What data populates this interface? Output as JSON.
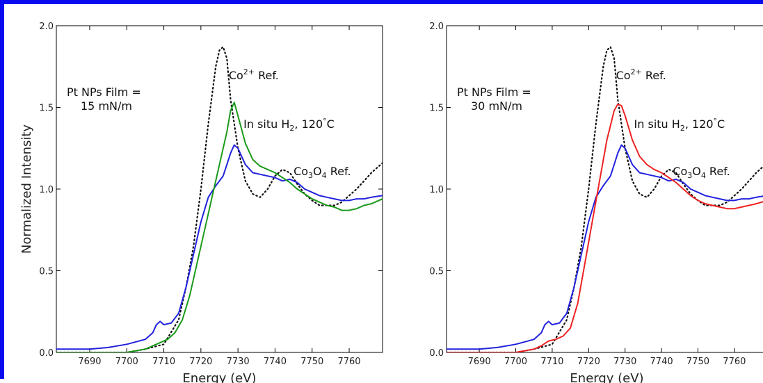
{
  "colors": {
    "frame": "#0a0af0",
    "dotted": "#111111",
    "blue": "#2222dd",
    "green": "#1a9a1a",
    "red": "#ee2222"
  },
  "chart_data": [
    {
      "type": "line",
      "xlabel": "Energy (eV)",
      "ylabel": "Normalized Intensity",
      "xlim": [
        7681,
        7769
      ],
      "ylim": [
        0.0,
        2.0
      ],
      "xticks": [
        "7690",
        "7700",
        "7710",
        "7720",
        "7730",
        "7740",
        "7750",
        "7760"
      ],
      "yticks": [
        "0.0",
        "0.5",
        "1.0",
        "1.5",
        "2.0"
      ],
      "film_label": [
        "Pt NPs Film =",
        "15 mN/m"
      ],
      "annotations": {
        "co2": "Co",
        "co2_sup": "2+",
        "co2_ref": " Ref.",
        "insitu": "In situ H",
        "insitu_sub": "2",
        "insitu_rest": ", 120",
        "insitu_deg": "°",
        "insitu_unit": "C",
        "co3o4_a": "Co",
        "co3o4_s1": "3",
        "co3o4_b": "O",
        "co3o4_s2": "4",
        "co3o4_c": " Ref."
      },
      "series": [
        {
          "key": "co2_ref",
          "style": "dotted",
          "color": "#111111",
          "x": [
            7681,
            7700,
            7705,
            7710,
            7714,
            7716,
            7718,
            7720,
            7722,
            7724,
            7725,
            7726,
            7727,
            7728,
            7730,
            7732,
            7734,
            7736,
            7738,
            7740,
            7742,
            7744,
            7746,
            7748,
            7750,
            7752,
            7754,
            7756,
            7758,
            7760,
            7762,
            7764,
            7766,
            7769
          ],
          "y": [
            0.0,
            0.0,
            0.02,
            0.05,
            0.2,
            0.4,
            0.65,
            1.0,
            1.4,
            1.75,
            1.85,
            1.87,
            1.8,
            1.55,
            1.25,
            1.05,
            0.97,
            0.95,
            1.0,
            1.08,
            1.12,
            1.1,
            1.03,
            0.97,
            0.93,
            0.9,
            0.9,
            0.9,
            0.92,
            0.96,
            1.0,
            1.05,
            1.1,
            1.16
          ]
        },
        {
          "key": "co3o4_ref",
          "style": "solid",
          "color": "#2222dd",
          "x": [
            7681,
            7690,
            7695,
            7700,
            7705,
            7707,
            7708,
            7709,
            7710,
            7712,
            7714,
            7716,
            7718,
            7720,
            7722,
            7724,
            7726,
            7727,
            7728,
            7729,
            7730,
            7732,
            7734,
            7736,
            7738,
            7740,
            7742,
            7744,
            7746,
            7748,
            7750,
            7752,
            7754,
            7756,
            7758,
            7760,
            7762,
            7764,
            7766,
            7769
          ],
          "y": [
            0.02,
            0.02,
            0.03,
            0.05,
            0.08,
            0.12,
            0.17,
            0.19,
            0.17,
            0.18,
            0.24,
            0.4,
            0.6,
            0.8,
            0.95,
            1.02,
            1.08,
            1.15,
            1.22,
            1.27,
            1.25,
            1.15,
            1.1,
            1.09,
            1.08,
            1.07,
            1.05,
            1.06,
            1.04,
            1.0,
            0.98,
            0.96,
            0.95,
            0.94,
            0.93,
            0.93,
            0.94,
            0.94,
            0.95,
            0.96
          ]
        },
        {
          "key": "in_situ",
          "style": "solid",
          "color": "#1a9a1a",
          "x": [
            7681,
            7700,
            7705,
            7707,
            7709,
            7711,
            7713,
            7715,
            7717,
            7719,
            7721,
            7723,
            7725,
            7727,
            7728,
            7729,
            7730,
            7732,
            7734,
            7736,
            7738,
            7740,
            7742,
            7744,
            7746,
            7748,
            7750,
            7752,
            7754,
            7756,
            7758,
            7760,
            7762,
            7764,
            7766,
            7769
          ],
          "y": [
            0.0,
            0.0,
            0.02,
            0.04,
            0.06,
            0.08,
            0.12,
            0.2,
            0.35,
            0.55,
            0.75,
            0.95,
            1.15,
            1.35,
            1.48,
            1.53,
            1.45,
            1.28,
            1.18,
            1.14,
            1.12,
            1.1,
            1.07,
            1.04,
            1.0,
            0.97,
            0.94,
            0.92,
            0.9,
            0.89,
            0.87,
            0.87,
            0.88,
            0.9,
            0.91,
            0.94
          ]
        }
      ]
    },
    {
      "type": "line",
      "xlabel": "Energy (eV)",
      "ylabel": "",
      "xlim": [
        7681,
        7769
      ],
      "ylim": [
        0.0,
        2.0
      ],
      "xticks": [
        "7690",
        "7700",
        "7710",
        "7720",
        "7730",
        "7740",
        "7750",
        "7760"
      ],
      "yticks": [
        "0.0",
        "0.5",
        "1.0",
        "1.5",
        "2.0"
      ],
      "film_label": [
        "Pt NPs Film =",
        "30 mN/m"
      ],
      "annotations": {
        "co2": "Co",
        "co2_sup": "2+",
        "co2_ref": " Ref.",
        "insitu": "In situ H",
        "insitu_sub": "2",
        "insitu_rest": ", 120",
        "insitu_deg": "°",
        "insitu_unit": "C",
        "co3o4_a": "Co",
        "co3o4_s1": "3",
        "co3o4_b": "O",
        "co3o4_s2": "4",
        "co3o4_c": " Ref."
      },
      "series": [
        {
          "key": "co2_ref",
          "style": "dotted",
          "color": "#111111",
          "x": [
            7681,
            7700,
            7705,
            7710,
            7714,
            7716,
            7718,
            7720,
            7722,
            7724,
            7725,
            7726,
            7727,
            7728,
            7730,
            7732,
            7734,
            7736,
            7738,
            7740,
            7742,
            7744,
            7746,
            7748,
            7750,
            7752,
            7754,
            7756,
            7758,
            7760,
            7762,
            7764,
            7766,
            7769
          ],
          "y": [
            0.0,
            0.0,
            0.02,
            0.05,
            0.2,
            0.4,
            0.65,
            1.0,
            1.4,
            1.75,
            1.85,
            1.87,
            1.8,
            1.55,
            1.25,
            1.05,
            0.97,
            0.95,
            1.0,
            1.08,
            1.12,
            1.1,
            1.03,
            0.97,
            0.93,
            0.9,
            0.9,
            0.9,
            0.92,
            0.96,
            1.0,
            1.05,
            1.1,
            1.16
          ]
        },
        {
          "key": "co3o4_ref",
          "style": "solid",
          "color": "#2222dd",
          "x": [
            7681,
            7690,
            7695,
            7700,
            7705,
            7707,
            7708,
            7709,
            7710,
            7712,
            7714,
            7716,
            7718,
            7720,
            7722,
            7724,
            7726,
            7727,
            7728,
            7729,
            7730,
            7732,
            7734,
            7736,
            7738,
            7740,
            7742,
            7744,
            7746,
            7748,
            7750,
            7752,
            7754,
            7756,
            7758,
            7760,
            7762,
            7764,
            7766,
            7769
          ],
          "y": [
            0.02,
            0.02,
            0.03,
            0.05,
            0.08,
            0.12,
            0.17,
            0.19,
            0.17,
            0.18,
            0.24,
            0.4,
            0.6,
            0.8,
            0.95,
            1.02,
            1.08,
            1.15,
            1.22,
            1.27,
            1.25,
            1.15,
            1.1,
            1.09,
            1.08,
            1.07,
            1.05,
            1.06,
            1.04,
            1.0,
            0.98,
            0.96,
            0.95,
            0.94,
            0.93,
            0.93,
            0.94,
            0.94,
            0.95,
            0.96
          ]
        },
        {
          "key": "in_situ",
          "style": "solid",
          "color": "#ee2222",
          "x": [
            7681,
            7700,
            7705,
            7707,
            7709,
            7711,
            7713,
            7715,
            7717,
            7719,
            7721,
            7723,
            7725,
            7727,
            7728,
            7729,
            7730,
            7732,
            7734,
            7736,
            7738,
            7740,
            7742,
            7744,
            7746,
            7748,
            7750,
            7752,
            7754,
            7756,
            7758,
            7760,
            7762,
            7764,
            7766,
            7769
          ],
          "y": [
            0.0,
            0.0,
            0.02,
            0.04,
            0.07,
            0.08,
            0.1,
            0.15,
            0.3,
            0.55,
            0.8,
            1.05,
            1.3,
            1.48,
            1.52,
            1.51,
            1.45,
            1.3,
            1.2,
            1.15,
            1.12,
            1.1,
            1.07,
            1.04,
            1.0,
            0.96,
            0.93,
            0.91,
            0.9,
            0.89,
            0.88,
            0.88,
            0.89,
            0.9,
            0.91,
            0.93
          ]
        }
      ]
    }
  ]
}
